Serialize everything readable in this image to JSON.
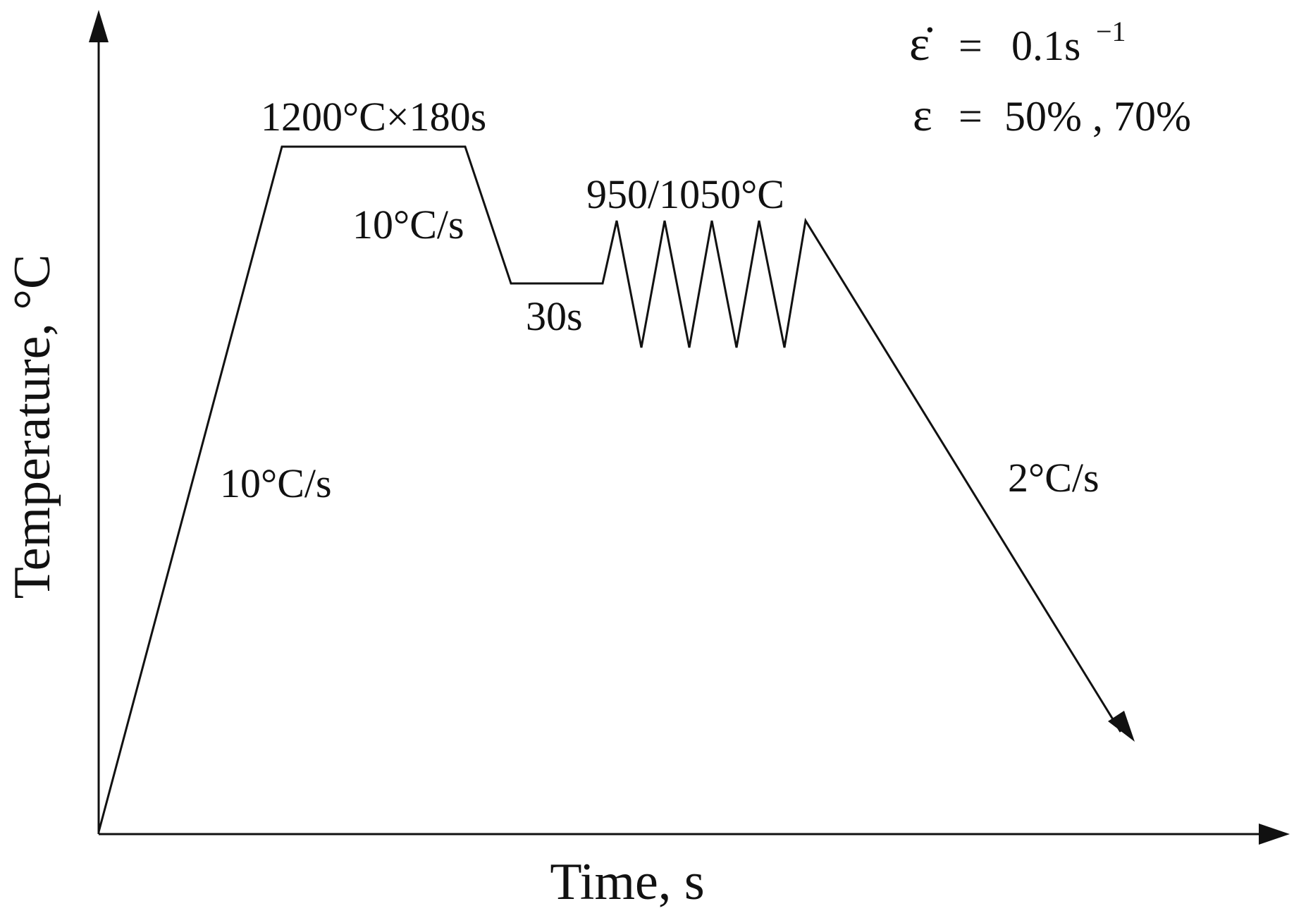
{
  "diagram": {
    "axes": {
      "x_label": "Time, s",
      "y_label": "Temperature, °C"
    },
    "annotations": {
      "heating_rate": "10°C/s",
      "soak": "1200°C×180s",
      "cooling_rate_1": "10°C/s",
      "hold": "30s",
      "deformation_temps": "950/1050°C",
      "cooling_rate_2": "2°C/s"
    },
    "conditions": {
      "strain_rate_symbol": "ε̇",
      "strain_rate_equals": "=",
      "strain_rate_value": "0.1s",
      "strain_rate_exponent": "−1",
      "strain_symbol": "ε",
      "strain_equals": "=",
      "strain_value": "50% , 70%"
    },
    "profile": {
      "cycles": 5
    }
  }
}
